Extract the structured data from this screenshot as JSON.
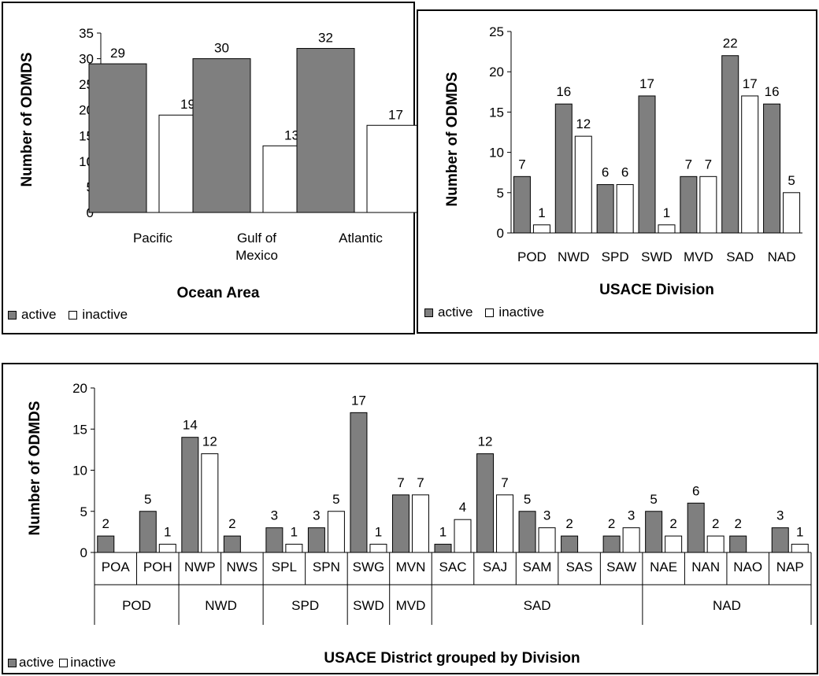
{
  "colors": {
    "active": "#7f7f7f",
    "inactive": "#ffffff",
    "stroke": "#000000"
  },
  "legend": {
    "active": "active",
    "inactive": "inactive"
  },
  "chart_data": [
    {
      "type": "bar",
      "xlabel": "Ocean Area",
      "ylabel": "Number of ODMDS",
      "ylim": [
        0,
        35
      ],
      "yticks": [
        0,
        5,
        10,
        15,
        20,
        25,
        30,
        35
      ],
      "categories": [
        [
          "Pacific"
        ],
        [
          "Gulf of",
          "Mexico"
        ],
        [
          "Atlantic"
        ]
      ],
      "series": [
        {
          "name": "active",
          "values": [
            29,
            30,
            32
          ]
        },
        {
          "name": "inactive",
          "values": [
            19,
            13,
            17
          ]
        }
      ],
      "legend": "bottom-left"
    },
    {
      "type": "bar",
      "xlabel": "USACE Division",
      "ylabel": "Number of ODMDS",
      "ylim": [
        0,
        25
      ],
      "yticks": [
        0,
        5,
        10,
        15,
        20,
        25
      ],
      "categories": [
        "POD",
        "NWD",
        "SPD",
        "SWD",
        "MVD",
        "SAD",
        "NAD"
      ],
      "series": [
        {
          "name": "active",
          "values": [
            7,
            16,
            6,
            17,
            7,
            22,
            16
          ]
        },
        {
          "name": "inactive",
          "values": [
            1,
            12,
            6,
            1,
            7,
            17,
            5
          ]
        }
      ],
      "legend": "bottom-left"
    },
    {
      "type": "bar",
      "xlabel": "USACE District grouped by Division",
      "ylabel": "Number of ODMDS",
      "ylim": [
        0,
        20
      ],
      "yticks": [
        0,
        5,
        10,
        15,
        20
      ],
      "categories": [
        "POA",
        "POH",
        "NWP",
        "NWS",
        "SPL",
        "SPN",
        "SWG",
        "MVN",
        "SAC",
        "SAJ",
        "SAM",
        "SAS",
        "SAW",
        "NAE",
        "NAN",
        "NAO",
        "NAP"
      ],
      "groups": [
        {
          "name": "POD",
          "size": 2
        },
        {
          "name": "NWD",
          "size": 2
        },
        {
          "name": "SPD",
          "size": 2
        },
        {
          "name": "SWD",
          "size": 1
        },
        {
          "name": "MVD",
          "size": 1
        },
        {
          "name": "SAD",
          "size": 5
        },
        {
          "name": "NAD",
          "size": 4
        }
      ],
      "series": [
        {
          "name": "active",
          "values": [
            2,
            5,
            14,
            2,
            3,
            3,
            17,
            7,
            1,
            12,
            5,
            2,
            2,
            5,
            6,
            2,
            3
          ]
        },
        {
          "name": "inactive",
          "values": [
            0,
            1,
            12,
            0,
            1,
            5,
            1,
            7,
            4,
            7,
            3,
            0,
            3,
            2,
            2,
            0,
            1
          ]
        }
      ],
      "hide_zero_labels": true,
      "legend": "bottom-left"
    }
  ]
}
